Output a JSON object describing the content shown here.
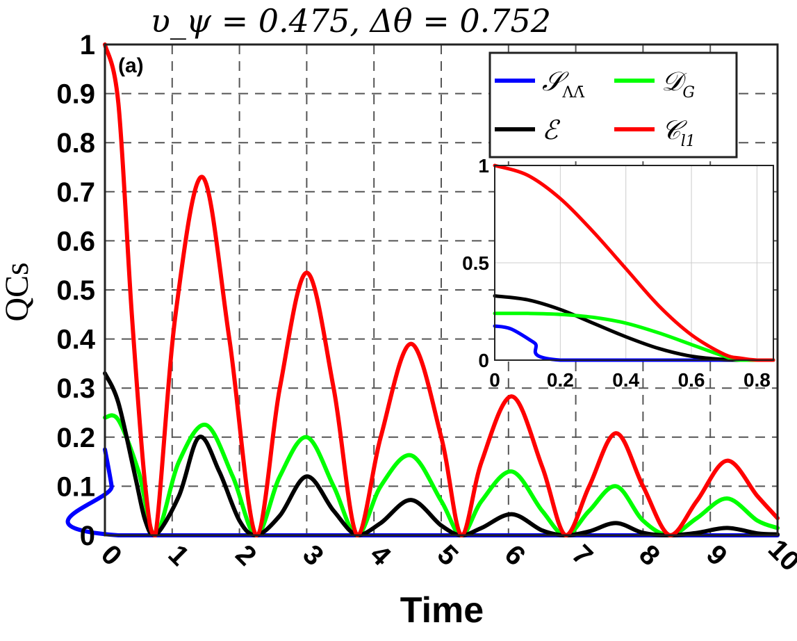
{
  "chart_data": [
    {
      "type": "line",
      "title": "υ_ψ = 0.475, Δθ = 0.752",
      "panel_label": "(a)",
      "xlabel": "Time",
      "ylabel": "QCs",
      "xlim": [
        0,
        10
      ],
      "ylim": [
        0,
        1
      ],
      "grid": true,
      "legend_position": "top-right",
      "x_ticks": [
        "0",
        "1",
        "2",
        "3",
        "4",
        "5",
        "6",
        "7",
        "8",
        "9",
        "10"
      ],
      "y_ticks": [
        "0",
        "0.1",
        "0.2",
        "0.3",
        "0.4",
        "0.5",
        "0.6",
        "0.7",
        "0.8",
        "0.9",
        "1"
      ],
      "series": [
        {
          "name": "𝒮_ΛΛ̄",
          "color": "#0000ff",
          "x": [
            0,
            0.1,
            0.2,
            10
          ],
          "y": [
            0.175,
            0.1,
            0,
            0
          ]
        },
        {
          "name": "𝒟_G",
          "color": "#00ff00",
          "x": [
            0,
            0.2,
            0.5,
            0.75,
            1.1,
            1.5,
            1.9,
            2.25,
            2.6,
            3.0,
            3.4,
            3.75,
            4.1,
            4.55,
            5.0,
            5.3,
            5.6,
            6.05,
            6.5,
            6.85,
            7.2,
            7.6,
            8.0,
            8.4,
            8.8,
            9.25,
            9.7,
            10.0
          ],
          "y": [
            0.24,
            0.235,
            0.13,
            0,
            0.15,
            0.225,
            0.12,
            0,
            0.12,
            0.2,
            0.1,
            0,
            0.1,
            0.163,
            0.07,
            0,
            0.07,
            0.13,
            0.05,
            0,
            0.05,
            0.1,
            0.03,
            0,
            0.035,
            0.075,
            0.03,
            0.015
          ]
        },
        {
          "name": "ℰ",
          "color": "#000000",
          "x": [
            0,
            0.2,
            0.45,
            0.6,
            0.75,
            1.1,
            1.4,
            1.7,
            2.0,
            2.25,
            2.6,
            3.0,
            3.4,
            3.75,
            4.1,
            4.55,
            5.0,
            5.3,
            5.6,
            6.05,
            6.5,
            6.85,
            7.2,
            7.6,
            8.0,
            8.4,
            8.8,
            9.25,
            9.7,
            10.0
          ],
          "y": [
            0.33,
            0.27,
            0.12,
            0.03,
            0,
            0.08,
            0.2,
            0.13,
            0.03,
            0,
            0.04,
            0.12,
            0.05,
            0,
            0.025,
            0.072,
            0.02,
            0,
            0.015,
            0.043,
            0.01,
            0,
            0.008,
            0.025,
            0.005,
            0,
            0.005,
            0.015,
            0.004,
            0.002
          ]
        },
        {
          "name": "𝒞_l1",
          "color": "#ff0000",
          "x": [
            0,
            0.2,
            0.4,
            0.6,
            0.75,
            1.05,
            1.45,
            1.85,
            2.25,
            2.6,
            3.0,
            3.4,
            3.75,
            4.1,
            4.55,
            5.0,
            5.3,
            5.6,
            6.05,
            6.5,
            6.85,
            7.2,
            7.6,
            8.0,
            8.4,
            8.8,
            9.25,
            9.7,
            10.0
          ],
          "y": [
            1.0,
            0.88,
            0.45,
            0.1,
            0,
            0.45,
            0.73,
            0.4,
            0,
            0.3,
            0.535,
            0.3,
            0,
            0.2,
            0.39,
            0.2,
            0,
            0.15,
            0.283,
            0.14,
            0,
            0.1,
            0.208,
            0.1,
            0,
            0.07,
            0.152,
            0.08,
            0.035
          ]
        }
      ]
    },
    {
      "type": "line",
      "title": "inset",
      "xlim": [
        0,
        0.85
      ],
      "ylim": [
        0,
        1
      ],
      "grid": true,
      "x_ticks": [
        "0",
        "0.2",
        "0.4",
        "0.6",
        "0.8"
      ],
      "y_ticks": [
        "0",
        "0.5",
        "1"
      ],
      "series": [
        {
          "name": "𝒮_ΛΛ̄",
          "color": "#0000ff",
          "x": [
            0,
            0.05,
            0.12,
            0.2,
            0.85
          ],
          "y": [
            0.175,
            0.16,
            0.09,
            0,
            0
          ]
        },
        {
          "name": "ℰ",
          "color": "#000000",
          "x": [
            0,
            0.1,
            0.2,
            0.3,
            0.4,
            0.5,
            0.6,
            0.7,
            0.75,
            0.85
          ],
          "y": [
            0.33,
            0.31,
            0.26,
            0.19,
            0.12,
            0.06,
            0.02,
            0.003,
            0,
            0
          ]
        },
        {
          "name": "𝒟_G",
          "color": "#00ff00",
          "x": [
            0,
            0.1,
            0.2,
            0.3,
            0.4,
            0.5,
            0.6,
            0.7,
            0.75,
            0.85
          ],
          "y": [
            0.24,
            0.24,
            0.235,
            0.22,
            0.19,
            0.14,
            0.08,
            0.02,
            0,
            0
          ]
        },
        {
          "name": "𝒞_l1",
          "color": "#ff0000",
          "x": [
            0,
            0.1,
            0.2,
            0.3,
            0.4,
            0.5,
            0.6,
            0.7,
            0.75,
            0.8,
            0.85
          ],
          "y": [
            1.0,
            0.95,
            0.83,
            0.66,
            0.47,
            0.28,
            0.13,
            0.03,
            0.01,
            0,
            0
          ]
        }
      ]
    }
  ],
  "legend": {
    "entries": [
      {
        "base": "𝒮",
        "sub": "ΛΛ̄",
        "color": "#0000ff"
      },
      {
        "base": "𝒟",
        "sub": "G",
        "color": "#00ff00"
      },
      {
        "base": "ℰ",
        "sub": "",
        "color": "#000000"
      },
      {
        "base": "𝒞",
        "sub": "l1",
        "color": "#ff0000"
      }
    ]
  }
}
